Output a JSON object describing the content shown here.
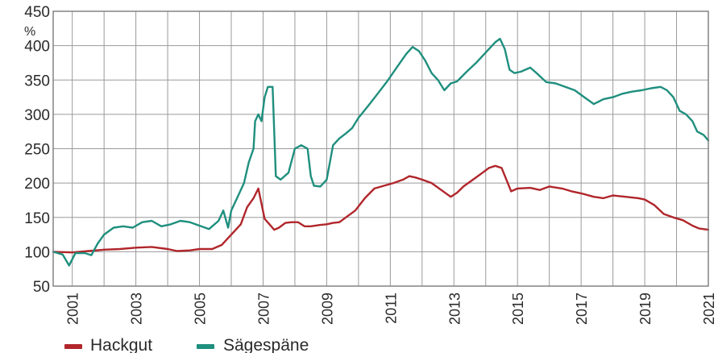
{
  "chart_data": {
    "type": "line",
    "y_unit": "%",
    "ylim": [
      50,
      450
    ],
    "y_ticks": [
      "50",
      "100",
      "150",
      "200",
      "250",
      "300",
      "350",
      "400",
      "450"
    ],
    "x_range": [
      2000.4,
      2021.0
    ],
    "x_ticks": [
      "2001",
      "2003",
      "2005",
      "2007",
      "2009",
      "2011",
      "2013",
      "2015",
      "2017",
      "2019",
      "2021"
    ],
    "grid": true,
    "legend_position": "bottom-left",
    "series": [
      {
        "name": "Hackgut",
        "color": "#b0262b",
        "points": [
          [
            2000.4,
            100
          ],
          [
            2001.0,
            99
          ],
          [
            2001.5,
            101
          ],
          [
            2002.0,
            103
          ],
          [
            2002.5,
            104
          ],
          [
            2003.0,
            106
          ],
          [
            2003.5,
            107
          ],
          [
            2004.0,
            104
          ],
          [
            2004.3,
            101
          ],
          [
            2004.7,
            102
          ],
          [
            2005.0,
            104
          ],
          [
            2005.4,
            104
          ],
          [
            2005.7,
            110
          ],
          [
            2005.9,
            120
          ],
          [
            2006.1,
            130
          ],
          [
            2006.3,
            140
          ],
          [
            2006.5,
            165
          ],
          [
            2006.7,
            178
          ],
          [
            2006.85,
            192
          ],
          [
            2006.95,
            170
          ],
          [
            2007.05,
            148
          ],
          [
            2007.2,
            140
          ],
          [
            2007.35,
            132
          ],
          [
            2007.5,
            135
          ],
          [
            2007.7,
            142
          ],
          [
            2007.9,
            143
          ],
          [
            2008.1,
            143
          ],
          [
            2008.3,
            137
          ],
          [
            2008.5,
            137
          ],
          [
            2008.8,
            139
          ],
          [
            2009.0,
            140
          ],
          [
            2009.2,
            142
          ],
          [
            2009.4,
            143
          ],
          [
            2009.6,
            150
          ],
          [
            2009.9,
            160
          ],
          [
            2010.2,
            178
          ],
          [
            2010.5,
            192
          ],
          [
            2010.8,
            196
          ],
          [
            2011.1,
            200
          ],
          [
            2011.4,
            205
          ],
          [
            2011.6,
            210
          ],
          [
            2011.8,
            208
          ],
          [
            2012.0,
            205
          ],
          [
            2012.3,
            200
          ],
          [
            2012.6,
            190
          ],
          [
            2012.9,
            180
          ],
          [
            2013.1,
            186
          ],
          [
            2013.3,
            195
          ],
          [
            2013.6,
            205
          ],
          [
            2013.9,
            215
          ],
          [
            2014.1,
            222
          ],
          [
            2014.3,
            225
          ],
          [
            2014.5,
            222
          ],
          [
            2014.65,
            205
          ],
          [
            2014.8,
            188
          ],
          [
            2015.0,
            192
          ],
          [
            2015.4,
            193
          ],
          [
            2015.7,
            190
          ],
          [
            2016.0,
            195
          ],
          [
            2016.4,
            192
          ],
          [
            2016.7,
            188
          ],
          [
            2017.0,
            185
          ],
          [
            2017.4,
            180
          ],
          [
            2017.7,
            178
          ],
          [
            2018.0,
            182
          ],
          [
            2018.4,
            180
          ],
          [
            2018.8,
            178
          ],
          [
            2019.0,
            176
          ],
          [
            2019.3,
            168
          ],
          [
            2019.6,
            155
          ],
          [
            2019.9,
            150
          ],
          [
            2020.2,
            146
          ],
          [
            2020.5,
            138
          ],
          [
            2020.7,
            134
          ],
          [
            2021.0,
            132
          ]
        ]
      },
      {
        "name": "Sägespäne",
        "color": "#1f8f7e",
        "points": [
          [
            2000.4,
            100
          ],
          [
            2000.7,
            96
          ],
          [
            2000.9,
            80
          ],
          [
            2001.1,
            98
          ],
          [
            2001.4,
            98
          ],
          [
            2001.6,
            95
          ],
          [
            2001.8,
            112
          ],
          [
            2002.0,
            125
          ],
          [
            2002.3,
            135
          ],
          [
            2002.6,
            137
          ],
          [
            2002.9,
            135
          ],
          [
            2003.2,
            143
          ],
          [
            2003.5,
            145
          ],
          [
            2003.8,
            137
          ],
          [
            2004.1,
            140
          ],
          [
            2004.4,
            145
          ],
          [
            2004.7,
            143
          ],
          [
            2005.0,
            138
          ],
          [
            2005.3,
            133
          ],
          [
            2005.6,
            145
          ],
          [
            2005.75,
            160
          ],
          [
            2005.9,
            135
          ],
          [
            2006.0,
            160
          ],
          [
            2006.2,
            180
          ],
          [
            2006.4,
            200
          ],
          [
            2006.55,
            230
          ],
          [
            2006.7,
            250
          ],
          [
            2006.75,
            290
          ],
          [
            2006.85,
            300
          ],
          [
            2006.95,
            290
          ],
          [
            2007.05,
            325
          ],
          [
            2007.15,
            340
          ],
          [
            2007.3,
            340
          ],
          [
            2007.4,
            210
          ],
          [
            2007.55,
            205
          ],
          [
            2007.8,
            215
          ],
          [
            2008.0,
            250
          ],
          [
            2008.2,
            255
          ],
          [
            2008.4,
            250
          ],
          [
            2008.5,
            210
          ],
          [
            2008.6,
            196
          ],
          [
            2008.8,
            195
          ],
          [
            2009.0,
            205
          ],
          [
            2009.2,
            255
          ],
          [
            2009.4,
            265
          ],
          [
            2009.6,
            272
          ],
          [
            2009.8,
            280
          ],
          [
            2010.0,
            295
          ],
          [
            2010.3,
            312
          ],
          [
            2010.6,
            330
          ],
          [
            2010.9,
            348
          ],
          [
            2011.2,
            368
          ],
          [
            2011.5,
            388
          ],
          [
            2011.7,
            398
          ],
          [
            2011.9,
            392
          ],
          [
            2012.1,
            378
          ],
          [
            2012.3,
            360
          ],
          [
            2012.5,
            350
          ],
          [
            2012.7,
            335
          ],
          [
            2012.9,
            345
          ],
          [
            2013.1,
            348
          ],
          [
            2013.4,
            362
          ],
          [
            2013.7,
            375
          ],
          [
            2014.0,
            390
          ],
          [
            2014.3,
            405
          ],
          [
            2014.45,
            410
          ],
          [
            2014.6,
            395
          ],
          [
            2014.75,
            365
          ],
          [
            2014.9,
            360
          ],
          [
            2015.1,
            362
          ],
          [
            2015.4,
            368
          ],
          [
            2015.6,
            360
          ],
          [
            2015.9,
            347
          ],
          [
            2016.2,
            345
          ],
          [
            2016.5,
            340
          ],
          [
            2016.8,
            335
          ],
          [
            2017.1,
            325
          ],
          [
            2017.4,
            315
          ],
          [
            2017.7,
            322
          ],
          [
            2018.0,
            325
          ],
          [
            2018.3,
            330
          ],
          [
            2018.6,
            333
          ],
          [
            2018.9,
            335
          ],
          [
            2019.2,
            338
          ],
          [
            2019.5,
            340
          ],
          [
            2019.7,
            335
          ],
          [
            2019.9,
            325
          ],
          [
            2020.1,
            305
          ],
          [
            2020.3,
            300
          ],
          [
            2020.5,
            290
          ],
          [
            2020.65,
            275
          ],
          [
            2020.85,
            270
          ],
          [
            2021.0,
            262
          ]
        ]
      }
    ]
  }
}
